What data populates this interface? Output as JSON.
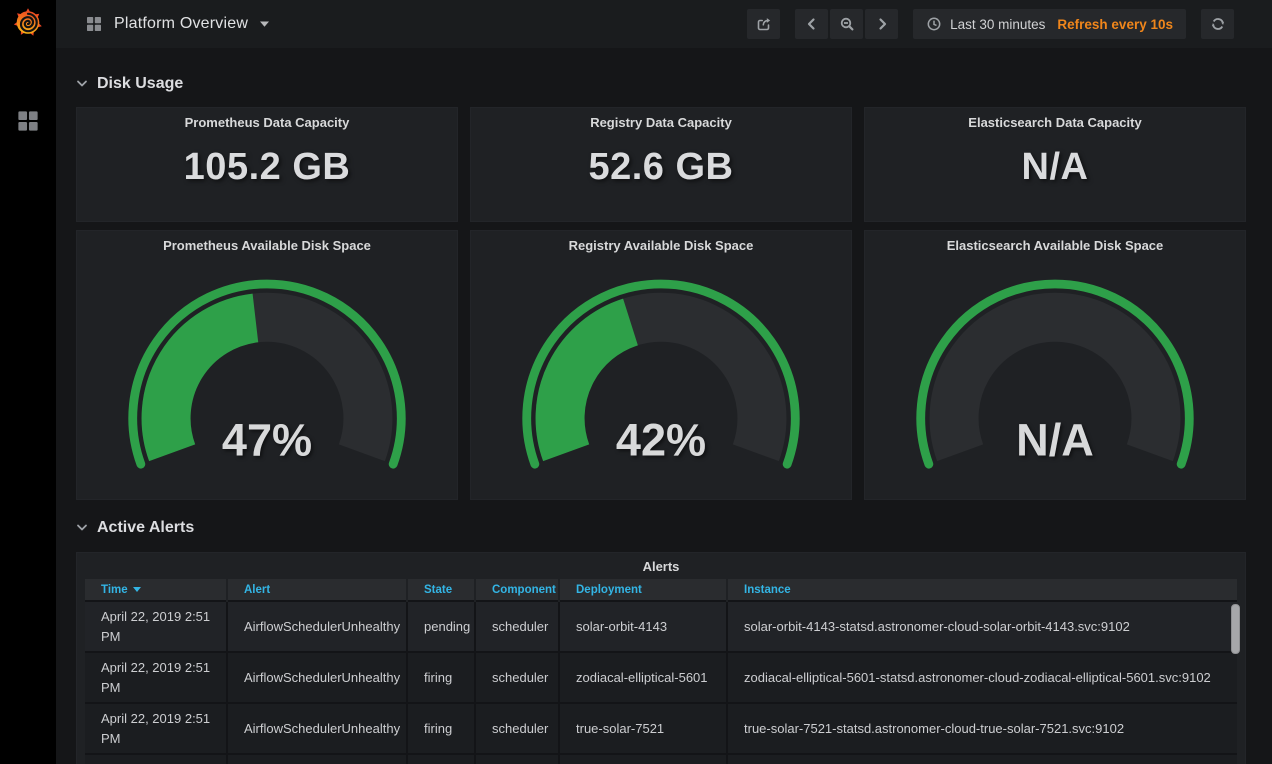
{
  "colors": {
    "green": "#2EA049",
    "gauge_track": "#2B2D30",
    "header_blue": "#33B5E5",
    "refresh_orange": "#F0861B",
    "panel_bg": "#1F2124",
    "page_bg": "#151618"
  },
  "icons": {
    "grafana-logo": "orange flame spiral",
    "dashboards-grid-icon": "2x2 squares grid",
    "title-caret-icon": "small down triangle",
    "share-icon": "box with outgoing arrow",
    "chevron-left-icon": "angle left",
    "zoom-out-icon": "magnifier with minus",
    "chevron-right-icon": "angle right",
    "clock-icon": "clock outline",
    "refresh-icon": "two circular arrows",
    "chevron-down-icon": "angle down",
    "sort-desc-icon": "filled down triangle"
  },
  "navbar": {
    "dashboard_title": "Platform Overview"
  },
  "time_picker": {
    "range_label": "Last 30 minutes",
    "refresh_label": "Refresh every 10s"
  },
  "sections": {
    "disk_usage": "Disk Usage",
    "active_alerts": "Active Alerts"
  },
  "stats": [
    {
      "title": "Prometheus Data Capacity",
      "value": "105.2 GB"
    },
    {
      "title": "Registry Data Capacity",
      "value": "52.6 GB"
    },
    {
      "title": "Elasticsearch Data Capacity",
      "value": "N/A"
    }
  ],
  "gauges": [
    {
      "title": "Prometheus Available Disk Space",
      "value": 47,
      "label": "47%"
    },
    {
      "title": "Registry Available Disk Space",
      "value": 42,
      "label": "42%"
    },
    {
      "title": "Elasticsearch Available Disk Space",
      "value": null,
      "label": "N/A"
    }
  ],
  "alerts_table": {
    "title": "Alerts",
    "columns": [
      "Time",
      "Alert",
      "State",
      "Component",
      "Deployment",
      "Instance"
    ],
    "sort": {
      "column": "Time",
      "direction": "desc"
    },
    "rows": [
      {
        "time": "April 22, 2019 2:51 PM",
        "alert": "AirflowSchedulerUnhealthy",
        "state": "pending",
        "component": "scheduler",
        "deployment": "solar-orbit-4143",
        "instance": "solar-orbit-4143-statsd.astronomer-cloud-solar-orbit-4143.svc:9102"
      },
      {
        "time": "April 22, 2019 2:51 PM",
        "alert": "AirflowSchedulerUnhealthy",
        "state": "firing",
        "component": "scheduler",
        "deployment": "zodiacal-elliptical-5601",
        "instance": "zodiacal-elliptical-5601-statsd.astronomer-cloud-zodiacal-elliptical-5601.svc:9102"
      },
      {
        "time": "April 22, 2019 2:51 PM",
        "alert": "AirflowSchedulerUnhealthy",
        "state": "firing",
        "component": "scheduler",
        "deployment": "true-solar-7521",
        "instance": "true-solar-7521-statsd.astronomer-cloud-true-solar-7521.svc:9102"
      }
    ]
  },
  "chart_data": [
    {
      "type": "gauge",
      "title": "Prometheus Available Disk Space",
      "value": 47,
      "unit": "%",
      "range": [
        0,
        100
      ]
    },
    {
      "type": "gauge",
      "title": "Registry Available Disk Space",
      "value": 42,
      "unit": "%",
      "range": [
        0,
        100
      ]
    },
    {
      "type": "gauge",
      "title": "Elasticsearch Available Disk Space",
      "value": null,
      "unit": "%",
      "range": [
        0,
        100
      ]
    },
    {
      "type": "stat",
      "title": "Prometheus Data Capacity",
      "value": "105.2 GB"
    },
    {
      "type": "stat",
      "title": "Registry Data Capacity",
      "value": "52.6 GB"
    },
    {
      "type": "stat",
      "title": "Elasticsearch Data Capacity",
      "value": "N/A"
    }
  ]
}
